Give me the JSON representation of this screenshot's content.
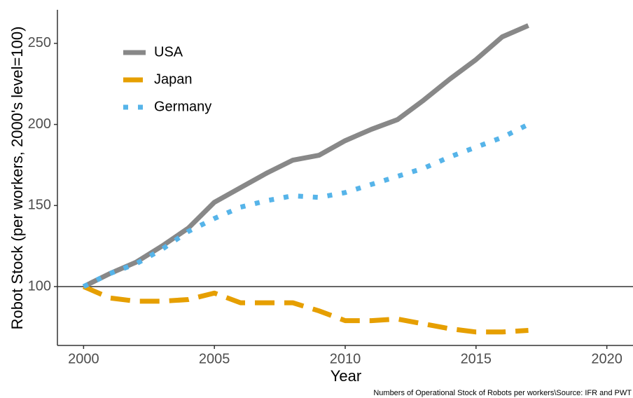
{
  "chart_data": {
    "type": "line",
    "x_label": "Year",
    "y_label": "Robot Stock (per workers, 2000's level=100)",
    "caption": "Numbers of Operational Stock of Robots per workers\\Source: IFR and PWT",
    "x": [
      2000,
      2001,
      2002,
      2003,
      2004,
      2005,
      2006,
      2007,
      2008,
      2009,
      2010,
      2011,
      2012,
      2013,
      2014,
      2015,
      2016,
      2017
    ],
    "series": [
      {
        "name": "USA",
        "color": "#888888",
        "dash": "solid",
        "values": [
          100,
          108,
          115,
          125,
          136,
          152,
          161,
          170,
          178,
          181,
          190,
          197,
          203,
          215,
          228,
          240,
          254,
          261
        ]
      },
      {
        "name": "Japan",
        "color": "#E69F00",
        "dash": "dashed",
        "values": [
          100,
          93,
          91,
          91,
          92,
          96,
          90,
          90,
          90,
          85,
          79,
          79,
          80,
          77,
          74,
          72,
          72,
          73
        ]
      },
      {
        "name": "Germany",
        "color": "#56B4E9",
        "dash": "dotted",
        "values": [
          100,
          108,
          114,
          123,
          134,
          142,
          149,
          153,
          156,
          155,
          158,
          163,
          168,
          173,
          180,
          186,
          192,
          200
        ]
      }
    ],
    "hline": 100,
    "xlim": [
      1999,
      2021
    ],
    "xticks": [
      2000,
      2005,
      2010,
      2015,
      2020
    ],
    "ylim": [
      63.7,
      270.7
    ],
    "yticks": [
      100,
      150,
      200,
      250
    ],
    "grid": false,
    "legend": "top-left"
  }
}
